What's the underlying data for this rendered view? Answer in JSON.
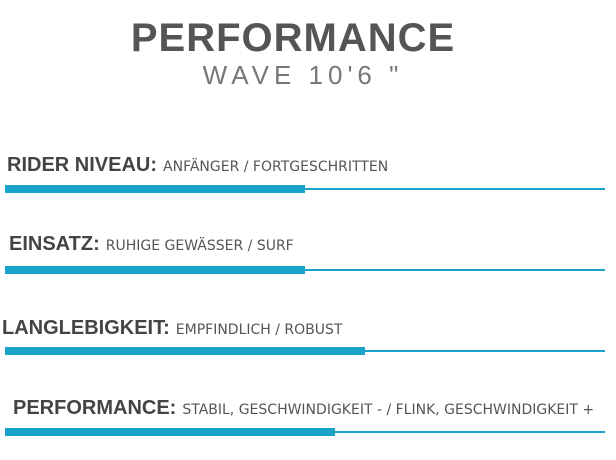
{
  "header": {
    "title": "PERFORMANCE",
    "subtitle": "WAVE 10'6 \""
  },
  "rows": [
    {
      "label": "RIDER NIVEAU:",
      "description": "ANFÄNGER / FORTGESCHRITTEN",
      "level": 0.5
    },
    {
      "label": "EINSATZ:",
      "description": "RUHIGE GEWÄSSER / SURF",
      "level": 0.5
    },
    {
      "label": "LANGLEBIGKEIT:",
      "description": "EMPFINDLICH / ROBUST",
      "level": 0.6
    },
    {
      "label": "PERFORMANCE:",
      "description": "STABIL, GESCHWINDIGKEIT - / FLINK, GESCHWINDIGKEIT +",
      "level": 0.55
    }
  ]
}
